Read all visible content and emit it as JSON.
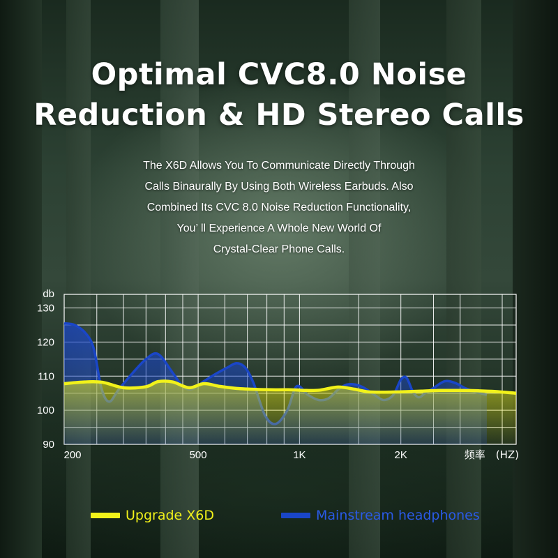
{
  "title_lines": [
    "Optimal CVC8.0 Noise",
    "Reduction & HD Stereo Calls"
  ],
  "description_lines": [
    "The X6D Allows You To Communicate Directly Through",
    "Calls Binaurally By Using Both Wireless Earbuds. Also",
    "Combined Its CVC 8.0 Noise Reduction Functionality,",
    "You’ ll Experience A Whole New World Of",
    "Crystal-Clear Phone Calls."
  ],
  "colors": {
    "upgrade": "#f2f21a",
    "mainstream": "#1a46c8",
    "grid": "#ffffff"
  },
  "chart_data": {
    "type": "line",
    "ylabel": "db",
    "xlabel": "频率　(HZ)",
    "y_ticks": [
      "130",
      "120",
      "110",
      "100",
      "90"
    ],
    "y_tick_values": [
      130,
      120,
      110,
      100,
      90
    ],
    "x_ticks": [
      "200",
      "500",
      "1K",
      "2K"
    ],
    "x_tick_values": [
      200,
      500,
      1000,
      2000
    ],
    "xlim": [
      200,
      4400
    ],
    "ylim": [
      90,
      134
    ],
    "x_scale": "log",
    "series": [
      {
        "name": "Upgrade X6D",
        "color": "#f2f21a",
        "x": [
          200,
          230,
          260,
          300,
          350,
          380,
          420,
          470,
          520,
          580,
          650,
          750,
          850,
          950,
          1050,
          1150,
          1300,
          1450,
          1600,
          1800,
          2000,
          2300,
          2600,
          3000,
          3400,
          3800,
          4400
        ],
        "y": [
          107.8,
          108.3,
          108.2,
          106.6,
          106.9,
          108.4,
          108.3,
          106.6,
          107.8,
          107.0,
          106.4,
          106.1,
          106.0,
          106.0,
          105.8,
          105.9,
          106.8,
          106.2,
          105.4,
          105.3,
          105.4,
          105.6,
          105.8,
          105.8,
          105.7,
          105.5,
          105.0
        ]
      },
      {
        "name": "Mainstream headphones",
        "color": "#1a46c8",
        "x": [
          200,
          215,
          232,
          245,
          258,
          272,
          290,
          320,
          350,
          380,
          420,
          450,
          480,
          520,
          560,
          610,
          650,
          690,
          730,
          790,
          850,
          920,
          980,
          1060,
          1140,
          1220,
          1300,
          1380,
          1470,
          1560,
          1670,
          1780,
          1900,
          2000,
          2080,
          2170,
          2260,
          2360,
          2500,
          2700,
          2900,
          3100,
          3300,
          3600
        ],
        "y": [
          125.5,
          125.0,
          122.5,
          118.0,
          106.5,
          102.5,
          106.0,
          111.0,
          115.0,
          116.5,
          111.0,
          107.0,
          106.2,
          108.5,
          110.5,
          112.5,
          113.8,
          112.5,
          108.0,
          98.5,
          96.0,
          100.0,
          107.0,
          104.5,
          103.0,
          103.5,
          106.0,
          107.5,
          107.5,
          106.5,
          104.5,
          103.0,
          104.5,
          109.0,
          109.5,
          105.5,
          103.8,
          105.0,
          106.5,
          108.5,
          108.0,
          106.5,
          105.5,
          104.5
        ]
      }
    ]
  }
}
